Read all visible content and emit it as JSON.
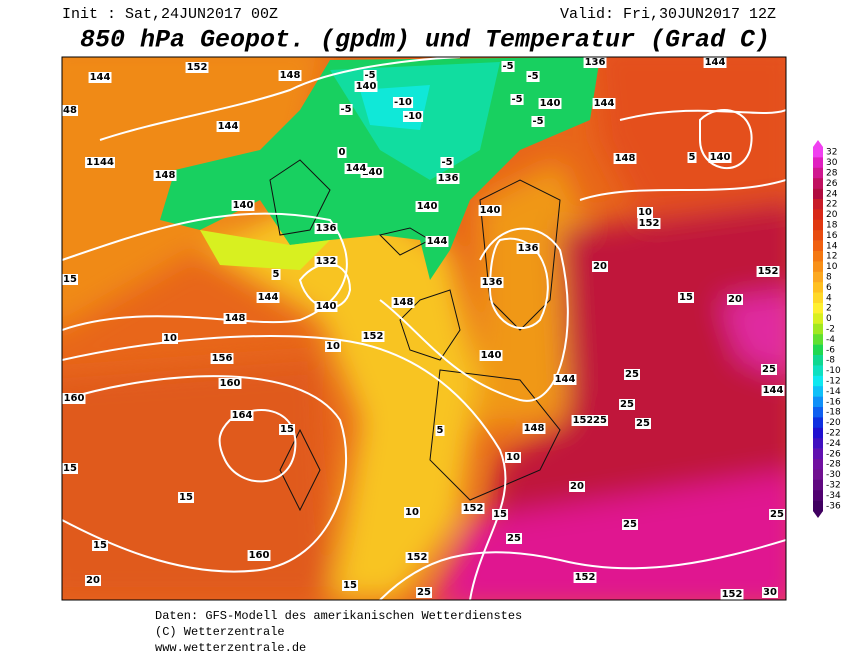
{
  "header": {
    "init": "Init : Sat,24JUN2017 00Z",
    "valid": "Valid: Fri,30JUN2017 12Z",
    "title": "850 hPa Geopot. (gpdm) und Temperatur (Grad C)"
  },
  "colorbar": {
    "labels": [
      32,
      30,
      28,
      26,
      24,
      22,
      20,
      18,
      16,
      14,
      12,
      10,
      8,
      6,
      4,
      2,
      0,
      -2,
      -4,
      -6,
      -8,
      -10,
      -12,
      -14,
      -16,
      -18,
      -20,
      -22,
      -24,
      -26,
      -28,
      -30,
      -32,
      -34,
      -36
    ],
    "colors": [
      "#f040f0",
      "#e020c0",
      "#d01890",
      "#c01060",
      "#b00c40",
      "#c81c28",
      "#d82818",
      "#e03810",
      "#e84c10",
      "#f06010",
      "#f47812",
      "#f89018",
      "#fca820",
      "#ffc020",
      "#ffd828",
      "#fff030",
      "#d8f020",
      "#a0e820",
      "#60e030",
      "#20d850",
      "#10d890",
      "#10e0c0",
      "#10e8f0",
      "#10c0f8",
      "#1090f8",
      "#1060f0",
      "#1030e0",
      "#2010d0",
      "#4010c0",
      "#6010b0",
      "#7010a0",
      "#701090",
      "#600880",
      "#500070",
      "#400060"
    ]
  },
  "map_labels": [
    144,
    152,
    148,
    140,
    -5,
    -5,
    -5,
    136,
    144,
    48,
    144,
    -10,
    -10,
    -5,
    -5,
    140,
    144,
    -5,
    1144,
    148,
    140,
    0,
    140,
    144,
    136,
    -5,
    140,
    148,
    5,
    140,
    136,
    144,
    140,
    132,
    5,
    144,
    148,
    140,
    148,
    136,
    136,
    152,
    10,
    20,
    152,
    15,
    20,
    15,
    10,
    152,
    156,
    10,
    140,
    160,
    160,
    144,
    25,
    25,
    144,
    25,
    164,
    15,
    152,
    25,
    25,
    148,
    5,
    10,
    15,
    15,
    20,
    152,
    10,
    15,
    25,
    25,
    15,
    160,
    152,
    25,
    20,
    15,
    25,
    152,
    30,
    152
  ],
  "footer": [
    "Daten: GFS-Modell des amerikanischen Wetterdienstes",
    "(C) Wetterzentrale",
    "www.wetterzentrale.de"
  ]
}
